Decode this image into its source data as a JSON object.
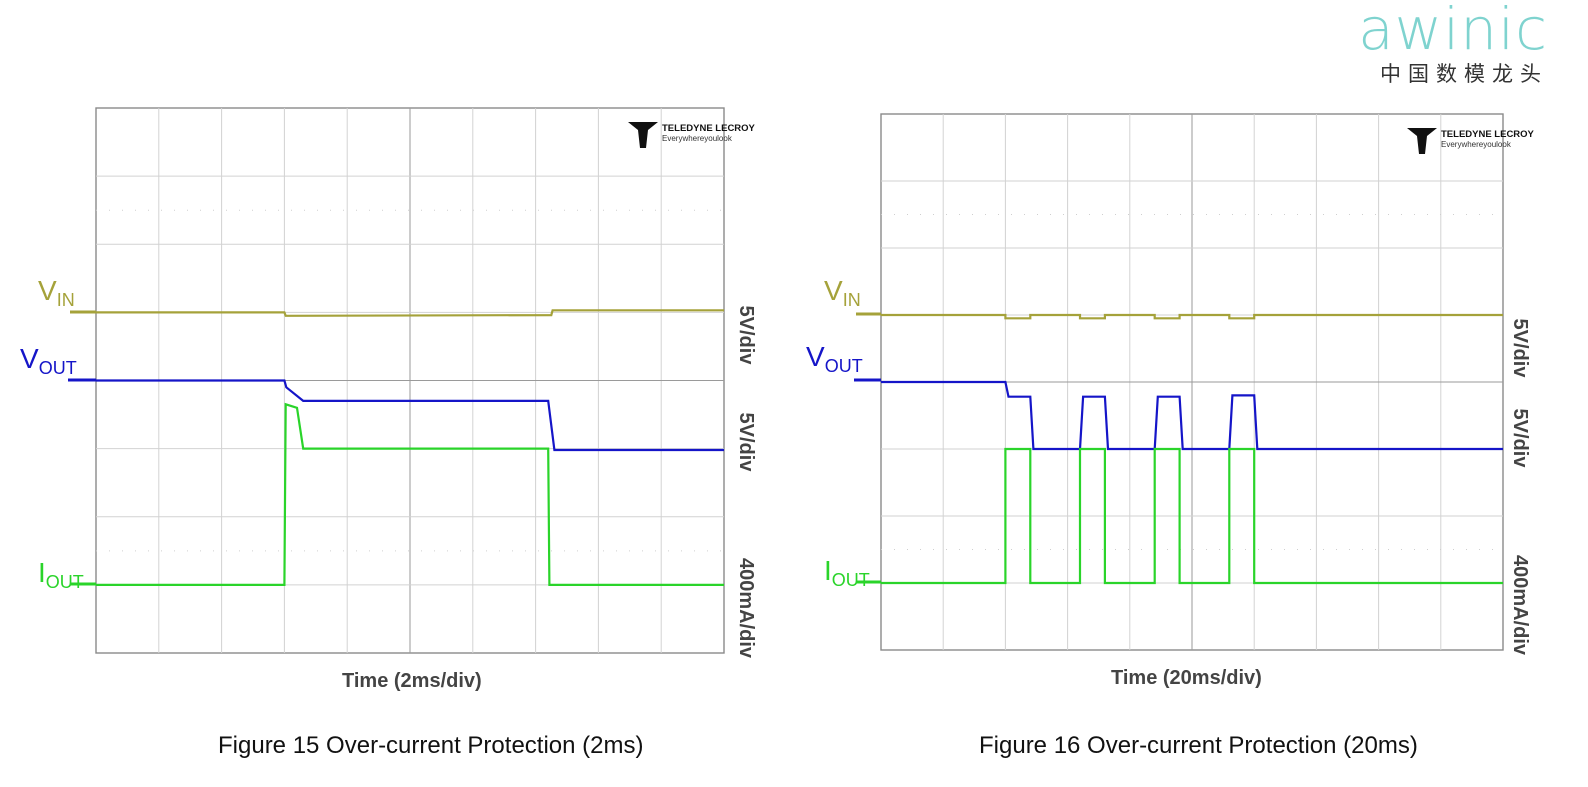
{
  "logo": {
    "brand": "awinic",
    "tagline": "中国数模龙头",
    "brand_color": "#7fd3cf"
  },
  "scope_logo": {
    "name": "TELEDYNE LECROY",
    "slogan": "Everywhereyoulook"
  },
  "colors": {
    "vin": "#a5a23a",
    "vout": "#1515c8",
    "iout": "#2ad42a"
  },
  "chart_data": [
    {
      "type": "line",
      "title": "Figure 15 Over-current Protection (2ms)",
      "caption": "Figure 15 Over-current Protection (2ms)",
      "xlabel": "Time (2ms/div)",
      "grid": true,
      "x_divisions": 10,
      "y_divisions": 8,
      "x_unit": "div",
      "series": [
        {
          "name": "VIN",
          "scale": "5V/div",
          "x": [
            0,
            3.0,
            3.02,
            7.25,
            7.27,
            10
          ],
          "y": [
            5.0,
            5.0,
            4.95,
            4.96,
            5.03,
            5.03
          ]
        },
        {
          "name": "VOUT",
          "scale": "5V/div",
          "x": [
            0,
            3.0,
            3.03,
            3.3,
            7.2,
            7.3,
            10
          ],
          "y": [
            4.0,
            4.0,
            3.9,
            3.7,
            3.7,
            2.98,
            2.98
          ]
        },
        {
          "name": "IOUT",
          "scale": "400mA/div",
          "x": [
            0,
            3.0,
            3.02,
            3.2,
            3.3,
            7.2,
            7.22,
            10
          ],
          "y": [
            1.0,
            1.0,
            3.65,
            3.6,
            3.0,
            3.0,
            1.0,
            1.0
          ]
        }
      ],
      "scale_labels": [
        "5V/div",
        "5V/div",
        "400mA/div"
      ]
    },
    {
      "type": "line",
      "title": "Figure 16 Over-current Protection (20ms)",
      "caption": "Figure 16 Over-current Protection (20ms)",
      "xlabel": "Time (20ms/div)",
      "grid": true,
      "x_divisions": 10,
      "y_divisions": 8,
      "x_unit": "div",
      "series": [
        {
          "name": "VIN",
          "scale": "5V/div",
          "x": [
            0,
            2.0,
            2.0,
            2.4,
            2.4,
            3.2,
            3.2,
            3.6,
            3.6,
            4.4,
            4.4,
            4.8,
            4.8,
            5.6,
            5.6,
            6.0,
            6.0,
            10
          ],
          "y": [
            5.0,
            5.0,
            4.95,
            4.95,
            5.0,
            5.0,
            4.95,
            4.95,
            5.0,
            5.0,
            4.95,
            4.95,
            5.0,
            5.0,
            4.95,
            4.95,
            5.0,
            5.0
          ]
        },
        {
          "name": "VOUT",
          "scale": "5V/div",
          "x": [
            0,
            2.0,
            2.05,
            2.4,
            2.45,
            3.2,
            3.25,
            3.6,
            3.65,
            4.4,
            4.45,
            4.8,
            4.85,
            5.6,
            5.65,
            6.0,
            6.05,
            10
          ],
          "y": [
            4.0,
            4.0,
            3.78,
            3.78,
            3.0,
            3.0,
            3.78,
            3.78,
            3.0,
            3.0,
            3.78,
            3.78,
            3.0,
            3.0,
            3.8,
            3.8,
            3.0,
            3.0
          ]
        },
        {
          "name": "IOUT",
          "scale": "400mA/div",
          "x": [
            0,
            2.0,
            2.0,
            2.4,
            2.4,
            3.2,
            3.2,
            3.6,
            3.6,
            4.4,
            4.4,
            4.8,
            4.8,
            5.6,
            5.6,
            6.0,
            6.0,
            10
          ],
          "y": [
            1.0,
            1.0,
            3.0,
            3.0,
            1.0,
            1.0,
            3.0,
            3.0,
            1.0,
            1.0,
            3.0,
            3.0,
            1.0,
            1.0,
            3.0,
            3.0,
            1.0,
            1.0
          ]
        }
      ],
      "scale_labels": [
        "5V/div",
        "5V/div",
        "400mA/div"
      ]
    }
  ]
}
